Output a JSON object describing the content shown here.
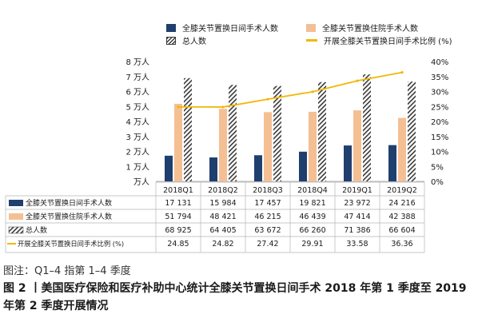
{
  "legend": {
    "day_surgery": "全膝关节置换日间手术人数",
    "inpatient": "全膝关节置换住院手术人数",
    "total": "总人数",
    "ratio": "开展全膝关节置换日间手术比例 (%)"
  },
  "colors": {
    "day_surgery": "#1f3f6e",
    "inpatient": "#f5bf94",
    "total": "#3a3a3a",
    "ratio": "#f2b705"
  },
  "chart_data": {
    "type": "bar",
    "categories": [
      "2018Q1",
      "2018Q2",
      "2018Q3",
      "2018Q4",
      "2019Q1",
      "2019Q2"
    ],
    "series": [
      {
        "name": "全膝关节置换日间手术人数",
        "axis": "left",
        "values": [
          17131,
          15984,
          17457,
          19821,
          23972,
          24216
        ],
        "labels": [
          "17 131",
          "15 984",
          "17 457",
          "19 821",
          "23 972",
          "24 216"
        ]
      },
      {
        "name": "全膝关节置换住院手术人数",
        "axis": "left",
        "values": [
          51794,
          48421,
          46215,
          46439,
          47414,
          42388
        ],
        "labels": [
          "51 794",
          "48 421",
          "46 215",
          "46 439",
          "47 414",
          "42 388"
        ]
      },
      {
        "name": "总人数",
        "axis": "left",
        "values": [
          68925,
          64405,
          63672,
          66260,
          71386,
          66604
        ],
        "labels": [
          "68 925",
          "64 405",
          "63 672",
          "66 260",
          "71 386",
          "66 604"
        ]
      },
      {
        "name": "开展全膝关节置换日间手术比例 (%)",
        "type": "line",
        "axis": "right",
        "values": [
          24.85,
          24.82,
          27.42,
          29.91,
          33.58,
          36.36
        ],
        "labels": [
          "24.85",
          "24.82",
          "27.42",
          "29.91",
          "33.58",
          "36.36"
        ]
      }
    ],
    "yticks_left": [
      "万人",
      "1 万人",
      "2 万人",
      "3 万人",
      "4 万人",
      "5 万人",
      "6 万人",
      "7 万人",
      "8 万人"
    ],
    "yticks_right": [
      "0%",
      "5%",
      "10%",
      "15%",
      "20%",
      "25%",
      "30%",
      "35%",
      "40%"
    ],
    "ylim": [
      0,
      80000
    ],
    "ylim_right": [
      0,
      40
    ],
    "legend_position": "top",
    "grid": false
  },
  "note": "图注：Q1–4 指第 1–4 季度",
  "caption": "图 2 丨美国医疗保险和医疗补助中心统计全膝关节置换日间手术 2018 年第 1 季度至 2019 年第 2 季度开展情况"
}
